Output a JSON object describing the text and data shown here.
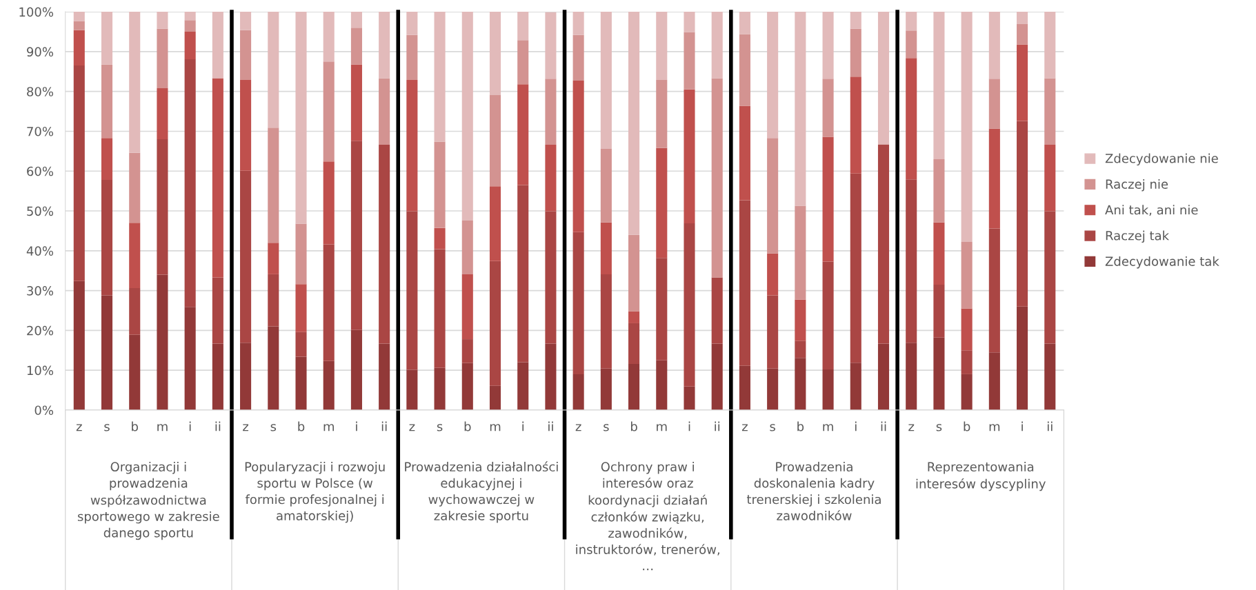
{
  "chart_data": {
    "type": "bar",
    "stacked": true,
    "categories": [
      "z",
      "s",
      "b",
      "m",
      "i",
      "ii",
      "z",
      "s",
      "b",
      "m",
      "i",
      "ii",
      "z",
      "s",
      "b",
      "m",
      "i",
      "ii",
      "z",
      "s",
      "b",
      "m",
      "i",
      "ii",
      "z",
      "s",
      "b",
      "m",
      "i",
      "ii",
      "z",
      "s",
      "b",
      "m",
      "i",
      "ii"
    ],
    "series": [
      {
        "name": "Zdecydowanie tak",
        "color": "#923938",
        "values": [
          32.4,
          28.8,
          18.9,
          34.0,
          25.9,
          16.7,
          16.9,
          21.0,
          13.4,
          12.3,
          20.1,
          16.7,
          10.1,
          10.6,
          11.8,
          6.1,
          12.0,
          16.7,
          9.0,
          10.4,
          11.6,
          12.5,
          5.9,
          16.7,
          11.1,
          10.4,
          13.1,
          10.2,
          11.9,
          16.7,
          16.9,
          18.2,
          9.0,
          14.5,
          26.0,
          16.7
        ]
      },
      {
        "name": "Raczej tak",
        "color": "#aa4644",
        "values": [
          54.1,
          29.0,
          11.7,
          34.0,
          62.2,
          16.6,
          43.2,
          13.1,
          6.2,
          29.3,
          47.5,
          49.9,
          39.8,
          29.8,
          6.0,
          31.3,
          44.5,
          33.2,
          35.7,
          23.7,
          10.2,
          25.7,
          41.0,
          16.6,
          41.6,
          18.4,
          4.3,
          27.1,
          47.5,
          50.0,
          41.0,
          13.3,
          6.0,
          31.1,
          46.6,
          33.2
        ]
      },
      {
        "name": "Ani tak, ani nie",
        "color": "#c0504d",
        "values": [
          8.9,
          10.5,
          16.4,
          12.8,
          6.9,
          50.0,
          22.8,
          7.9,
          12.0,
          20.8,
          19.2,
          0,
          33.0,
          5.3,
          16.3,
          18.8,
          25.3,
          16.7,
          38.0,
          13.0,
          3.0,
          27.6,
          33.6,
          0,
          23.7,
          10.5,
          10.3,
          31.3,
          24.3,
          0,
          30.5,
          15.6,
          10.5,
          25.1,
          19.2,
          16.7
        ]
      },
      {
        "name": "Raczej nie",
        "color": "#d39391",
        "values": [
          2.3,
          18.5,
          17.6,
          15.0,
          2.9,
          0,
          12.5,
          28.9,
          15.2,
          25.1,
          9.2,
          16.7,
          11.3,
          21.7,
          13.5,
          22.9,
          11.1,
          16.6,
          11.5,
          18.5,
          19.2,
          17.1,
          14.4,
          50.0,
          18.0,
          29.0,
          23.6,
          14.6,
          12.1,
          0,
          6.9,
          15.9,
          16.7,
          12.5,
          5.1,
          16.7
        ]
      },
      {
        "name": "Zdecydowanie nie",
        "color": "#e2baba",
        "values": [
          2.3,
          13.2,
          35.4,
          4.2,
          2.1,
          16.7,
          4.6,
          29.1,
          53.2,
          12.5,
          4.0,
          16.7,
          5.8,
          32.6,
          52.4,
          20.9,
          7.1,
          16.7,
          5.8,
          34.4,
          56.0,
          17.1,
          5.1,
          16.7,
          5.6,
          31.7,
          48.7,
          16.8,
          4.2,
          33.3,
          4.7,
          37.0,
          57.8,
          16.8,
          3.1,
          16.7
        ]
      }
    ],
    "ylim": [
      0,
      100
    ],
    "yticks": [
      {
        "value": 0,
        "label": "0%"
      },
      {
        "value": 10,
        "label": "10%"
      },
      {
        "value": 20,
        "label": "20%"
      },
      {
        "value": 30,
        "label": "30%"
      },
      {
        "value": 40,
        "label": "40%"
      },
      {
        "value": 50,
        "label": "50%"
      },
      {
        "value": 60,
        "label": "60%"
      },
      {
        "value": 70,
        "label": "70%"
      },
      {
        "value": 80,
        "label": "80%"
      },
      {
        "value": 90,
        "label": "90%"
      },
      {
        "value": 100,
        "label": "100%"
      }
    ],
    "grid": "y",
    "legend": "right",
    "annotations": [
      "Organizacji i\nprowadzenia\nwspółzawodnictwa\nsportowego w zakresie\ndanego sportu",
      "Popularyzacji i rozwoju\nsportu w Polsce (w\nformie profesjonalnej i\namatorskiej)",
      "Prowadzenia działalności\nedukacyjnej i\nwychowawczej w\nzakresie sportu",
      "Ochrony praw i\ninteresów oraz\nkoordynacji działań\nczłonków związku,\nzawodników,\ninstruktorów, trenerów,\n…",
      "Prowadzenia\ndoskonalenia kadry\ntrenerskiej i szkolenia\nzawodników",
      "Reprezentowania\ninteresów dyscypliny"
    ]
  }
}
